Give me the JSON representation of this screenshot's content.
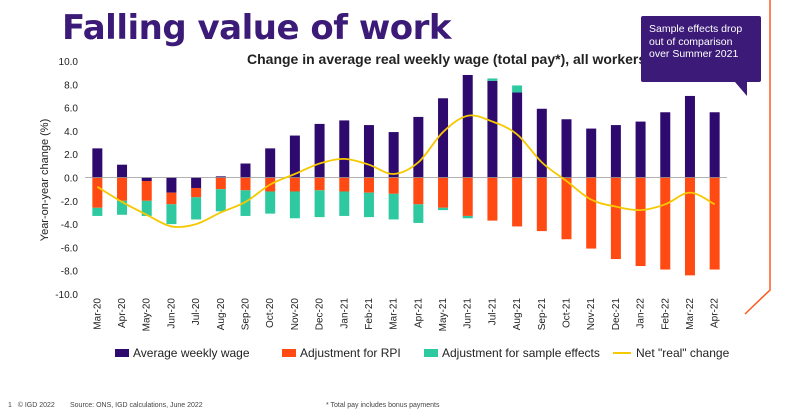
{
  "page": {
    "title": "Falling value of work",
    "callout": "Sample effects drop out of comparison over Summer 2021",
    "footer_page": "1",
    "footer_copyright": "© IGD 2022",
    "footer_source": "Source: ONS, IGD calculations, June 2022",
    "footer_note": "* Total pay includes bonus payments",
    "accent_color": "#ff5a1f"
  },
  "chart_data": {
    "type": "bar",
    "stacked": true,
    "title": "Change in average real weekly wage (total pay*), all workers",
    "ylabel": "Year-on-year change (%)",
    "xlabel": "",
    "ylim": [
      -10,
      10
    ],
    "yticks": [
      "10.0",
      "8.0",
      "6.0",
      "4.0",
      "2.0",
      "0.0",
      "-2.0",
      "-4.0",
      "-6.0",
      "-8.0",
      "-10.0"
    ],
    "grid": false,
    "legend_position": "bottom",
    "categories": [
      "Mar-20",
      "Apr-20",
      "May-20",
      "Jun-20",
      "Jul-20",
      "Aug-20",
      "Sep-20",
      "Oct-20",
      "Nov-20",
      "Dec-20",
      "Jan-21",
      "Feb-21",
      "Mar-21",
      "Apr-21",
      "May-21",
      "Jun-21",
      "Jul-21",
      "Aug-21",
      "Sep-21",
      "Oct-21",
      "Nov-21",
      "Dec-21",
      "Jan-22",
      "Feb-22",
      "Mar-22",
      "Apr-22"
    ],
    "series": [
      {
        "name": "Average weekly wage",
        "color": "#2e0a6e",
        "kind": "bar",
        "values": [
          2.5,
          1.1,
          -0.3,
          -1.3,
          -0.9,
          0.1,
          1.2,
          2.5,
          3.6,
          4.6,
          4.9,
          4.5,
          3.9,
          5.2,
          6.8,
          8.8,
          8.3,
          7.3,
          5.9,
          5.0,
          4.2,
          4.5,
          4.8,
          5.6,
          7.0,
          5.6
        ]
      },
      {
        "name": "Adjustment for RPI",
        "color": "#ff4a14",
        "kind": "bar",
        "values": [
          -2.6,
          -2.0,
          -1.7,
          -1.0,
          -0.8,
          -1.0,
          -1.1,
          -1.2,
          -1.2,
          -1.1,
          -1.2,
          -1.3,
          -1.4,
          -2.3,
          -2.6,
          -3.3,
          -3.7,
          -4.2,
          -4.6,
          -5.3,
          -6.1,
          -7.0,
          -7.6,
          -7.9,
          -8.4,
          -7.9
        ]
      },
      {
        "name": "Adjustment for sample effects",
        "color": "#2ec9a0",
        "kind": "bar",
        "values": [
          -0.7,
          -1.2,
          -1.3,
          -1.7,
          -1.9,
          -1.9,
          -2.2,
          -1.9,
          -2.3,
          -2.3,
          -2.1,
          -2.1,
          -2.2,
          -1.6,
          -0.2,
          -0.2,
          0.2,
          0.6,
          0,
          0,
          0,
          0,
          0,
          0,
          0,
          0
        ]
      },
      {
        "name": "Net \"real\" change",
        "color": "#f6c800",
        "kind": "line",
        "values": [
          -0.8,
          -2.1,
          -3.2,
          -4.2,
          -4.0,
          -3.0,
          -2.1,
          -0.6,
          0.3,
          1.2,
          1.6,
          1.1,
          0.3,
          1.3,
          3.9,
          5.3,
          4.8,
          3.7,
          1.3,
          -0.3,
          -1.9,
          -2.5,
          -2.8,
          -2.3,
          -1.3,
          -2.3
        ]
      }
    ]
  }
}
